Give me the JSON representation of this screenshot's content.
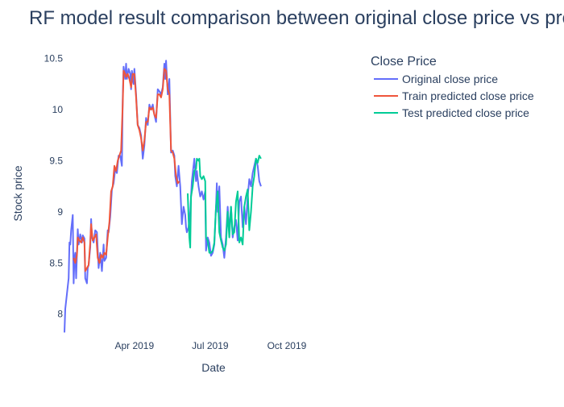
{
  "chart_data": {
    "type": "line",
    "title": "RF model result comparison between original close price vs predicted close price",
    "xlabel": "Date",
    "ylabel": "Stock price",
    "legend_title": "Close Price",
    "legend_position": "top-right",
    "grid": false,
    "x_range": [
      "2019-01-07",
      "2019-12-31"
    ],
    "ylim": [
      7.8,
      10.6
    ],
    "x_ticks": [
      {
        "date": "2019-04-01",
        "label": "Apr 2019"
      },
      {
        "date": "2019-07-01",
        "label": "Jul 2019"
      },
      {
        "date": "2019-10-01",
        "label": "Oct 2019"
      }
    ],
    "y_ticks": [
      {
        "value": 8,
        "label": "8"
      },
      {
        "value": 8.5,
        "label": "8.5"
      },
      {
        "value": 9,
        "label": "9"
      },
      {
        "value": 9.5,
        "label": "9.5"
      },
      {
        "value": 10,
        "label": "10"
      },
      {
        "value": 10.5,
        "label": "10.5"
      }
    ],
    "series": [
      {
        "name": "Original close price",
        "color": "#636efa",
        "points": [
          [
            "2019-01-07",
            7.82
          ],
          [
            "2019-01-08",
            8.05
          ],
          [
            "2019-01-10",
            8.2
          ],
          [
            "2019-01-12",
            8.35
          ],
          [
            "2019-01-13",
            8.7
          ],
          [
            "2019-01-14",
            8.68
          ],
          [
            "2019-01-15",
            8.82
          ],
          [
            "2019-01-17",
            8.97
          ],
          [
            "2019-01-18",
            8.3
          ],
          [
            "2019-01-19",
            8.55
          ],
          [
            "2019-01-20",
            8.6
          ],
          [
            "2019-01-21",
            8.35
          ],
          [
            "2019-01-23",
            8.83
          ],
          [
            "2019-01-24",
            8.68
          ],
          [
            "2019-01-26",
            8.78
          ],
          [
            "2019-01-28",
            8.7
          ],
          [
            "2019-01-29",
            8.77
          ],
          [
            "2019-01-31",
            8.74
          ],
          [
            "2019-02-01",
            8.35
          ],
          [
            "2019-02-03",
            8.3
          ],
          [
            "2019-02-04",
            8.45
          ],
          [
            "2019-02-05",
            8.48
          ],
          [
            "2019-02-07",
            8.65
          ],
          [
            "2019-02-08",
            8.93
          ],
          [
            "2019-02-09",
            8.75
          ],
          [
            "2019-02-11",
            8.7
          ],
          [
            "2019-02-13",
            8.82
          ],
          [
            "2019-02-15",
            8.8
          ],
          [
            "2019-02-17",
            8.45
          ],
          [
            "2019-02-19",
            8.6
          ],
          [
            "2019-02-21",
            8.42
          ],
          [
            "2019-02-23",
            8.68
          ],
          [
            "2019-02-24",
            8.52
          ],
          [
            "2019-02-26",
            8.55
          ],
          [
            "2019-02-28",
            8.82
          ],
          [
            "2019-03-01",
            8.8
          ],
          [
            "2019-03-03",
            8.95
          ],
          [
            "2019-03-05",
            9.22
          ],
          [
            "2019-03-07",
            9.28
          ],
          [
            "2019-03-09",
            9.42
          ],
          [
            "2019-03-11",
            9.38
          ],
          [
            "2019-03-13",
            9.55
          ],
          [
            "2019-03-15",
            9.55
          ],
          [
            "2019-03-17",
            9.45
          ],
          [
            "2019-03-18",
            10.1
          ],
          [
            "2019-03-19",
            10.42
          ],
          [
            "2019-03-21",
            10.3
          ],
          [
            "2019-03-22",
            10.45
          ],
          [
            "2019-03-23",
            10.3
          ],
          [
            "2019-03-25",
            10.4
          ],
          [
            "2019-03-27",
            10.35
          ],
          [
            "2019-03-28",
            10.2
          ],
          [
            "2019-03-29",
            10.38
          ],
          [
            "2019-03-31",
            10.25
          ],
          [
            "2019-04-01",
            10.4
          ],
          [
            "2019-04-03",
            10.15
          ],
          [
            "2019-04-05",
            9.85
          ],
          [
            "2019-04-07",
            9.82
          ],
          [
            "2019-04-09",
            9.75
          ],
          [
            "2019-04-11",
            9.52
          ],
          [
            "2019-04-13",
            9.65
          ],
          [
            "2019-04-15",
            9.92
          ],
          [
            "2019-04-17",
            9.85
          ],
          [
            "2019-04-19",
            10.05
          ],
          [
            "2019-04-21",
            10.0
          ],
          [
            "2019-04-23",
            10.05
          ],
          [
            "2019-04-25",
            9.95
          ],
          [
            "2019-04-27",
            9.88
          ],
          [
            "2019-04-29",
            10.2
          ],
          [
            "2019-05-01",
            10.18
          ],
          [
            "2019-05-03",
            10.15
          ],
          [
            "2019-05-05",
            10.22
          ],
          [
            "2019-05-07",
            10.45
          ],
          [
            "2019-05-08",
            10.3
          ],
          [
            "2019-05-09",
            10.48
          ],
          [
            "2019-05-11",
            10.15
          ],
          [
            "2019-05-13",
            10.3
          ],
          [
            "2019-05-15",
            9.58
          ],
          [
            "2019-05-17",
            9.6
          ],
          [
            "2019-05-19",
            9.55
          ],
          [
            "2019-05-20",
            9.35
          ],
          [
            "2019-05-22",
            9.25
          ],
          [
            "2019-05-24",
            9.45
          ],
          [
            "2019-05-26",
            9.25
          ],
          [
            "2019-05-28",
            8.88
          ],
          [
            "2019-05-30",
            9.05
          ],
          [
            "2019-06-01",
            8.97
          ],
          [
            "2019-06-02",
            8.85
          ],
          [
            "2019-06-03",
            8.8
          ],
          [
            "2019-06-05",
            8.85
          ],
          [
            "2019-06-07",
            9.0
          ],
          [
            "2019-06-09",
            9.3
          ],
          [
            "2019-06-11",
            9.45
          ],
          [
            "2019-06-12",
            9.52
          ],
          [
            "2019-06-14",
            9.3
          ],
          [
            "2019-06-15",
            9.4
          ],
          [
            "2019-06-17",
            9.25
          ],
          [
            "2019-06-19",
            9.15
          ],
          [
            "2019-06-21",
            9.2
          ],
          [
            "2019-06-23",
            9.12
          ],
          [
            "2019-06-25",
            9.2
          ],
          [
            "2019-06-26",
            8.62
          ],
          [
            "2019-06-28",
            8.75
          ],
          [
            "2019-06-30",
            8.7
          ],
          [
            "2019-07-02",
            8.57
          ],
          [
            "2019-07-04",
            8.6
          ],
          [
            "2019-07-06",
            8.68
          ],
          [
            "2019-07-08",
            9.05
          ],
          [
            "2019-07-09",
            9.28
          ],
          [
            "2019-07-10",
            9.0
          ],
          [
            "2019-07-12",
            9.25
          ],
          [
            "2019-07-14",
            8.75
          ],
          [
            "2019-07-16",
            8.68
          ],
          [
            "2019-07-18",
            8.55
          ],
          [
            "2019-07-20",
            8.75
          ],
          [
            "2019-07-22",
            9.05
          ],
          [
            "2019-07-24",
            8.8
          ],
          [
            "2019-07-26",
            9.05
          ],
          [
            "2019-07-28",
            8.75
          ],
          [
            "2019-07-30",
            8.85
          ],
          [
            "2019-08-01",
            8.92
          ],
          [
            "2019-08-03",
            8.72
          ],
          [
            "2019-08-05",
            9.1
          ],
          [
            "2019-08-07",
            9.15
          ],
          [
            "2019-08-09",
            8.85
          ],
          [
            "2019-08-11",
            9.05
          ],
          [
            "2019-08-13",
            8.88
          ],
          [
            "2019-08-15",
            9.15
          ],
          [
            "2019-08-17",
            9.32
          ],
          [
            "2019-08-19",
            9.25
          ],
          [
            "2019-08-21",
            9.38
          ],
          [
            "2019-08-23",
            9.45
          ],
          [
            "2019-08-25",
            9.52
          ],
          [
            "2019-08-27",
            9.45
          ],
          [
            "2019-08-29",
            9.3
          ],
          [
            "2019-08-31",
            9.25
          ]
        ]
      },
      {
        "name": "Train predicted close price",
        "color": "#ef553b",
        "points": [
          [
            "2019-01-18",
            8.55
          ],
          [
            "2019-01-20",
            8.5
          ],
          [
            "2019-01-22",
            8.58
          ],
          [
            "2019-01-23",
            8.75
          ],
          [
            "2019-01-25",
            8.72
          ],
          [
            "2019-01-27",
            8.7
          ],
          [
            "2019-01-29",
            8.75
          ],
          [
            "2019-01-31",
            8.7
          ],
          [
            "2019-02-01",
            8.42
          ],
          [
            "2019-02-03",
            8.45
          ],
          [
            "2019-02-05",
            8.48
          ],
          [
            "2019-02-07",
            8.7
          ],
          [
            "2019-02-08",
            8.88
          ],
          [
            "2019-02-10",
            8.72
          ],
          [
            "2019-02-12",
            8.75
          ],
          [
            "2019-02-14",
            8.78
          ],
          [
            "2019-02-16",
            8.55
          ],
          [
            "2019-02-18",
            8.5
          ],
          [
            "2019-02-20",
            8.58
          ],
          [
            "2019-02-22",
            8.55
          ],
          [
            "2019-02-24",
            8.6
          ],
          [
            "2019-02-26",
            8.58
          ],
          [
            "2019-02-28",
            8.75
          ],
          [
            "2019-03-02",
            8.9
          ],
          [
            "2019-03-04",
            9.2
          ],
          [
            "2019-03-06",
            9.25
          ],
          [
            "2019-03-08",
            9.45
          ],
          [
            "2019-03-10",
            9.4
          ],
          [
            "2019-03-12",
            9.5
          ],
          [
            "2019-03-14",
            9.55
          ],
          [
            "2019-03-16",
            9.6
          ],
          [
            "2019-03-18",
            10.05
          ],
          [
            "2019-03-19",
            10.38
          ],
          [
            "2019-03-21",
            10.35
          ],
          [
            "2019-03-22",
            10.32
          ],
          [
            "2019-03-24",
            10.35
          ],
          [
            "2019-03-26",
            10.3
          ],
          [
            "2019-03-28",
            10.22
          ],
          [
            "2019-03-30",
            10.35
          ],
          [
            "2019-04-01",
            10.35
          ],
          [
            "2019-04-03",
            10.12
          ],
          [
            "2019-04-05",
            9.85
          ],
          [
            "2019-04-07",
            9.8
          ],
          [
            "2019-04-09",
            9.72
          ],
          [
            "2019-04-11",
            9.6
          ],
          [
            "2019-04-13",
            9.7
          ],
          [
            "2019-04-15",
            9.88
          ],
          [
            "2019-04-17",
            9.88
          ],
          [
            "2019-04-19",
            10.02
          ],
          [
            "2019-04-21",
            10.0
          ],
          [
            "2019-04-23",
            10.02
          ],
          [
            "2019-04-25",
            9.95
          ],
          [
            "2019-04-27",
            9.92
          ],
          [
            "2019-04-29",
            10.15
          ],
          [
            "2019-05-01",
            10.15
          ],
          [
            "2019-05-03",
            10.12
          ],
          [
            "2019-05-05",
            10.2
          ],
          [
            "2019-05-07",
            10.4
          ],
          [
            "2019-05-09",
            10.38
          ],
          [
            "2019-05-11",
            10.2
          ],
          [
            "2019-05-13",
            10.15
          ],
          [
            "2019-05-15",
            9.6
          ],
          [
            "2019-05-17",
            9.58
          ],
          [
            "2019-05-19",
            9.52
          ],
          [
            "2019-05-21",
            9.35
          ],
          [
            "2019-05-23",
            9.28
          ],
          [
            "2019-05-25",
            9.3
          ]
        ]
      },
      {
        "name": "Test predicted close price",
        "color": "#00cc96",
        "points": [
          [
            "2019-06-04",
            9.18
          ],
          [
            "2019-06-05",
            8.95
          ],
          [
            "2019-06-06",
            8.75
          ],
          [
            "2019-06-07",
            8.65
          ],
          [
            "2019-06-08",
            9.15
          ],
          [
            "2019-06-10",
            9.25
          ],
          [
            "2019-06-12",
            9.4
          ],
          [
            "2019-06-14",
            9.42
          ],
          [
            "2019-06-15",
            9.52
          ],
          [
            "2019-06-17",
            9.5
          ],
          [
            "2019-06-18",
            9.52
          ],
          [
            "2019-06-19",
            9.35
          ],
          [
            "2019-06-21",
            9.32
          ],
          [
            "2019-06-23",
            9.35
          ],
          [
            "2019-06-25",
            9.3
          ],
          [
            "2019-06-26",
            8.75
          ],
          [
            "2019-06-28",
            8.72
          ],
          [
            "2019-06-30",
            8.6
          ],
          [
            "2019-07-02",
            8.6
          ],
          [
            "2019-07-04",
            8.62
          ],
          [
            "2019-07-06",
            8.7
          ],
          [
            "2019-07-08",
            9.05
          ],
          [
            "2019-07-10",
            9.2
          ],
          [
            "2019-07-12",
            8.8
          ],
          [
            "2019-07-14",
            8.72
          ],
          [
            "2019-07-16",
            8.65
          ],
          [
            "2019-07-18",
            8.62
          ],
          [
            "2019-07-20",
            8.68
          ],
          [
            "2019-07-22",
            9.0
          ],
          [
            "2019-07-24",
            8.75
          ],
          [
            "2019-07-26",
            9.05
          ],
          [
            "2019-07-28",
            8.78
          ],
          [
            "2019-07-30",
            8.8
          ],
          [
            "2019-08-01",
            9.1
          ],
          [
            "2019-08-03",
            9.2
          ],
          [
            "2019-08-05",
            8.7
          ],
          [
            "2019-08-07",
            8.75
          ],
          [
            "2019-08-09",
            8.68
          ],
          [
            "2019-08-11",
            9.05
          ],
          [
            "2019-08-13",
            9.15
          ],
          [
            "2019-08-15",
            9.22
          ],
          [
            "2019-08-17",
            8.82
          ],
          [
            "2019-08-19",
            9.0
          ],
          [
            "2019-08-21",
            9.25
          ],
          [
            "2019-08-23",
            9.35
          ],
          [
            "2019-08-25",
            9.52
          ],
          [
            "2019-08-27",
            9.48
          ],
          [
            "2019-08-29",
            9.55
          ],
          [
            "2019-08-31",
            9.52
          ]
        ]
      }
    ]
  }
}
